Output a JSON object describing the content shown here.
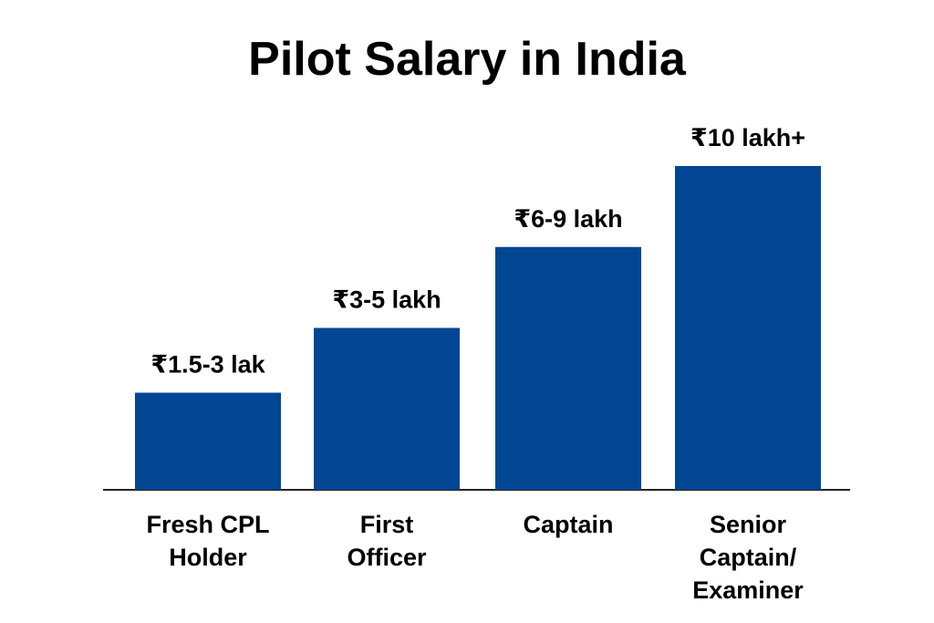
{
  "chart_data": {
    "type": "bar",
    "title": "Pilot Salary in India",
    "categories": [
      "Fresh CPL\nHolder",
      "First\nOfficer",
      "Captain",
      "Senior\nCaptain/\nExaminer"
    ],
    "values": [
      3,
      5,
      7.5,
      10
    ],
    "value_labels": [
      "₹1.5-3 lak",
      "₹3-5 lakh",
      "₹6-9 lakh",
      "₹10 lakh+"
    ],
    "color": "#034694"
  }
}
